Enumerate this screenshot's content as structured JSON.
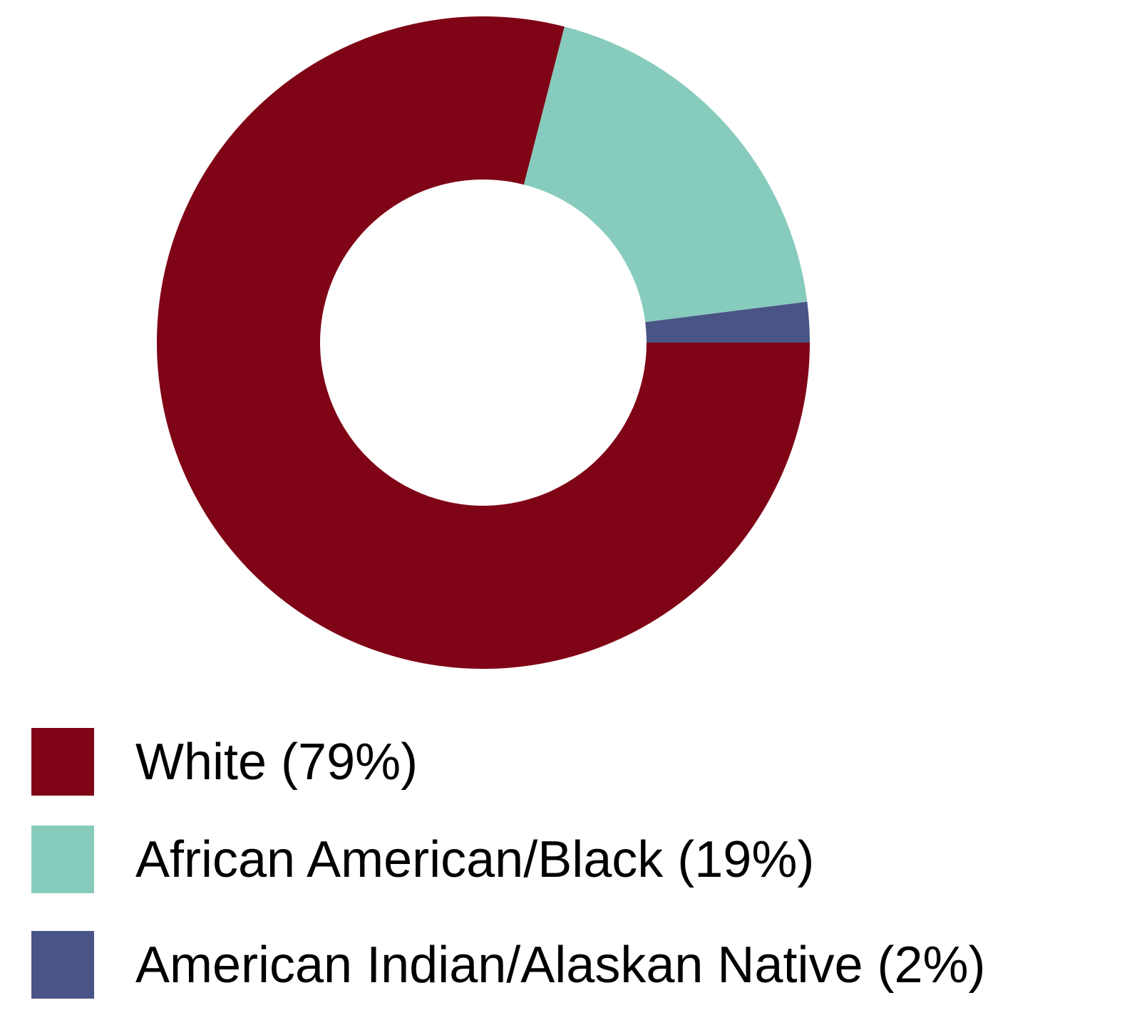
{
  "chart_data": {
    "type": "donut",
    "categories": [
      "White (79%)",
      "African American/Black (19%)",
      "American Indian/Alaskan Native (2%)"
    ],
    "values": [
      79,
      19,
      2
    ],
    "colors": [
      "#7f0416",
      "#87cbbc",
      "#4a5486"
    ]
  }
}
